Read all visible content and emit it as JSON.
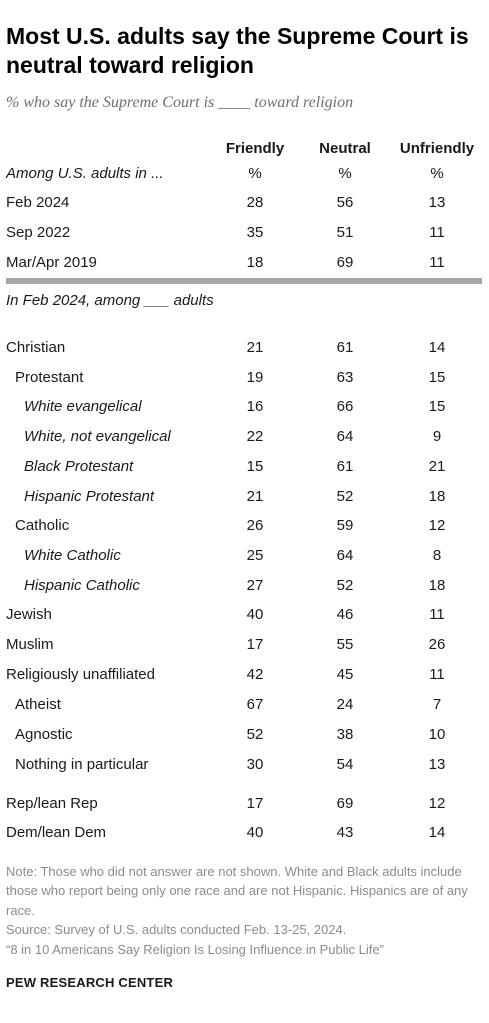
{
  "title": "Most U.S. adults say the Supreme Court is neutral toward religion",
  "subtitle": "% who say the Supreme Court is ____ toward religion",
  "chart_data": {
    "type": "table",
    "columns": [
      "Friendly",
      "Neutral",
      "Unfriendly"
    ],
    "units": [
      "%",
      "%",
      "%"
    ],
    "section1_label": "Among U.S. adults in ...",
    "section1": [
      {
        "label": "Feb 2024",
        "values": [
          "28",
          "56",
          "13"
        ]
      },
      {
        "label": "Sep 2022",
        "values": [
          "35",
          "51",
          "11"
        ]
      },
      {
        "label": "Mar/Apr 2019",
        "values": [
          "18",
          "69",
          "11"
        ]
      }
    ],
    "section2_label": "In Feb 2024, among ___ adults",
    "section2": [
      {
        "label": "Christian",
        "values": [
          "21",
          "61",
          "14"
        ],
        "indent": 0,
        "italic": false
      },
      {
        "label": "Protestant",
        "values": [
          "19",
          "63",
          "15"
        ],
        "indent": 1,
        "italic": false
      },
      {
        "label": "White evangelical",
        "values": [
          "16",
          "66",
          "15"
        ],
        "indent": 2,
        "italic": true
      },
      {
        "label": "White, not evangelical",
        "values": [
          "22",
          "64",
          "9"
        ],
        "indent": 2,
        "italic": true
      },
      {
        "label": "Black Protestant",
        "values": [
          "15",
          "61",
          "21"
        ],
        "indent": 2,
        "italic": true
      },
      {
        "label": "Hispanic Protestant",
        "values": [
          "21",
          "52",
          "18"
        ],
        "indent": 2,
        "italic": true
      },
      {
        "label": "Catholic",
        "values": [
          "26",
          "59",
          "12"
        ],
        "indent": 1,
        "italic": false
      },
      {
        "label": "White Catholic",
        "values": [
          "25",
          "64",
          "8"
        ],
        "indent": 2,
        "italic": true
      },
      {
        "label": "Hispanic Catholic",
        "values": [
          "27",
          "52",
          "18"
        ],
        "indent": 2,
        "italic": true
      },
      {
        "label": "Jewish",
        "values": [
          "40",
          "46",
          "11"
        ],
        "indent": 0,
        "italic": false
      },
      {
        "label": "Muslim",
        "values": [
          "17",
          "55",
          "26"
        ],
        "indent": 0,
        "italic": false
      },
      {
        "label": "Religiously unaffiliated",
        "values": [
          "42",
          "45",
          "11"
        ],
        "indent": 0,
        "italic": false
      },
      {
        "label": "Atheist",
        "values": [
          "67",
          "24",
          "7"
        ],
        "indent": 1,
        "italic": false
      },
      {
        "label": "Agnostic",
        "values": [
          "52",
          "38",
          "10"
        ],
        "indent": 1,
        "italic": false
      },
      {
        "label": "Nothing in particular",
        "values": [
          "30",
          "54",
          "13"
        ],
        "indent": 1,
        "italic": false
      },
      {
        "label": "Rep/lean Rep",
        "values": [
          "17",
          "69",
          "12"
        ],
        "indent": 0,
        "italic": false
      },
      {
        "label": "Dem/lean Dem",
        "values": [
          "40",
          "43",
          "14"
        ],
        "indent": 0,
        "italic": false
      }
    ]
  },
  "note": "Note: Those who did not answer are not shown. White and Black adults include those who report being only one race and are not Hispanic. Hispanics are of any race.",
  "source": "Source: Survey of U.S. adults conducted Feb. 13-25, 2024.",
  "report": "“8 in 10 Americans Say Religion Is Losing Influence in Public Life”",
  "brand": "PEW RESEARCH CENTER"
}
